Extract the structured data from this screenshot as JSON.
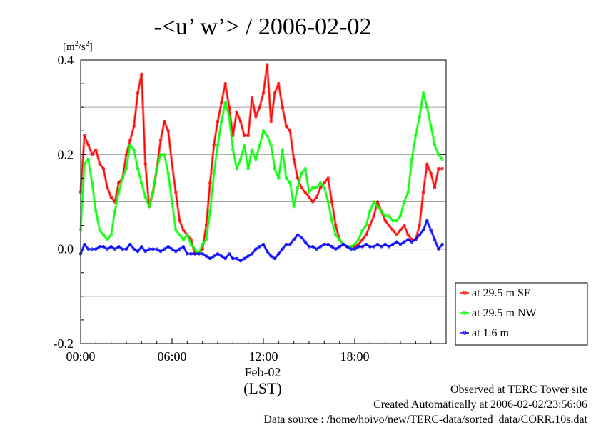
{
  "title": "-<u’ w’> / 2006-02-02",
  "footer": {
    "line1": "Observed at TERC Tower site",
    "line2": "Created Automatically at 2006-02-02/23:56:06",
    "line3": "Data source : /home/hoivo/new/TERC-data/sorted_data/CORR.10s.dat"
  },
  "chart_data": {
    "type": "line",
    "title": "-<u’ w’> / 2006-02-02",
    "ylabel": "[m²/s²]",
    "ylabel_parts": {
      "base": "[m",
      "sup1": "2",
      "mid": "/s",
      "sup2": "2",
      "end": "]"
    },
    "xlabel": "(LST)",
    "date_label": "Feb-02",
    "ylim": [
      -0.2,
      0.4
    ],
    "xlim_hours": [
      0,
      24
    ],
    "yticks": [
      -0.2,
      0.0,
      0.2,
      0.4
    ],
    "ytick_labels": [
      "-0.2",
      "0.0",
      "0.2",
      "0.4"
    ],
    "xticks_hours": [
      0,
      6,
      12,
      18
    ],
    "xtick_labels": [
      "00:00",
      "06:00",
      "12:00",
      "18:00"
    ],
    "gridlines_y": [
      -0.1,
      0.0,
      0.1,
      0.2,
      0.3
    ],
    "grid": true,
    "legend_position": "right",
    "series": [
      {
        "name": "at 29.5 m SE",
        "color": "#ff0000",
        "x": [
          0.0,
          0.25,
          0.5,
          0.75,
          1.0,
          1.25,
          1.5,
          1.75,
          2.0,
          2.25,
          2.5,
          2.75,
          3.0,
          3.25,
          3.5,
          3.75,
          4.0,
          4.25,
          4.5,
          4.75,
          5.0,
          5.25,
          5.5,
          5.75,
          6.0,
          6.25,
          6.5,
          6.75,
          7.0,
          7.25,
          7.5,
          7.75,
          8.0,
          8.25,
          8.5,
          8.75,
          9.0,
          9.25,
          9.5,
          9.75,
          10.0,
          10.25,
          10.5,
          10.75,
          11.0,
          11.25,
          11.5,
          11.75,
          12.0,
          12.25,
          12.5,
          12.75,
          13.0,
          13.25,
          13.5,
          13.75,
          14.0,
          14.25,
          14.5,
          14.75,
          15.0,
          15.25,
          15.5,
          15.75,
          16.0,
          16.25,
          16.5,
          16.75,
          17.0,
          17.25,
          17.5,
          17.75,
          18.0,
          18.25,
          18.5,
          18.75,
          19.0,
          19.25,
          19.5,
          19.75,
          20.0,
          20.25,
          20.5,
          20.75,
          21.0,
          21.25,
          21.5,
          21.75,
          22.0,
          22.25,
          22.5,
          22.75,
          23.0,
          23.25,
          23.5,
          23.75
        ],
        "values": [
          0.12,
          0.24,
          0.22,
          0.2,
          0.21,
          0.18,
          0.17,
          0.13,
          0.11,
          0.1,
          0.14,
          0.15,
          0.2,
          0.23,
          0.26,
          0.33,
          0.37,
          0.18,
          0.09,
          0.12,
          0.17,
          0.23,
          0.27,
          0.25,
          0.18,
          0.12,
          0.06,
          0.04,
          0.03,
          0.02,
          -0.01,
          -0.01,
          0.0,
          0.05,
          0.14,
          0.22,
          0.27,
          0.31,
          0.35,
          0.3,
          0.24,
          0.29,
          0.27,
          0.24,
          0.24,
          0.32,
          0.28,
          0.3,
          0.33,
          0.39,
          0.27,
          0.33,
          0.35,
          0.3,
          0.26,
          0.25,
          0.19,
          0.15,
          0.13,
          0.12,
          0.11,
          0.1,
          0.11,
          0.13,
          0.14,
          0.15,
          0.1,
          0.05,
          0.02,
          0.01,
          0.005,
          0.005,
          0.005,
          0.01,
          0.02,
          0.03,
          0.05,
          0.07,
          0.1,
          0.08,
          0.06,
          0.05,
          0.04,
          0.03,
          0.04,
          0.05,
          0.03,
          0.02,
          0.02,
          0.05,
          0.12,
          0.18,
          0.16,
          0.13,
          0.17,
          0.17
        ]
      },
      {
        "name": "at 29.5 m NW",
        "color": "#00ff00",
        "x": [
          0.0,
          0.25,
          0.5,
          0.75,
          1.0,
          1.25,
          1.5,
          1.75,
          2.0,
          2.25,
          2.5,
          2.75,
          3.0,
          3.25,
          3.5,
          3.75,
          4.0,
          4.25,
          4.5,
          4.75,
          5.0,
          5.25,
          5.5,
          5.75,
          6.0,
          6.25,
          6.5,
          6.75,
          7.0,
          7.25,
          7.5,
          7.75,
          8.0,
          8.25,
          8.5,
          8.75,
          9.0,
          9.25,
          9.5,
          9.75,
          10.0,
          10.25,
          10.5,
          10.75,
          11.0,
          11.25,
          11.5,
          11.75,
          12.0,
          12.25,
          12.5,
          12.75,
          13.0,
          13.25,
          13.5,
          13.75,
          14.0,
          14.25,
          14.5,
          14.75,
          15.0,
          15.25,
          15.5,
          15.75,
          16.0,
          16.25,
          16.5,
          16.75,
          17.0,
          17.25,
          17.5,
          17.75,
          18.0,
          18.25,
          18.5,
          18.75,
          19.0,
          19.25,
          19.5,
          19.75,
          20.0,
          20.25,
          20.5,
          20.75,
          21.0,
          21.25,
          21.5,
          21.75,
          22.0,
          22.25,
          22.5,
          22.75,
          23.0,
          23.25,
          23.5,
          23.75
        ],
        "values": [
          0.04,
          0.18,
          0.19,
          0.14,
          0.08,
          0.04,
          0.03,
          0.02,
          0.03,
          0.08,
          0.12,
          0.15,
          0.17,
          0.22,
          0.21,
          0.17,
          0.14,
          0.11,
          0.09,
          0.12,
          0.17,
          0.2,
          0.2,
          0.16,
          0.1,
          0.04,
          0.03,
          0.02,
          0.03,
          0.01,
          0.0,
          -0.01,
          0.01,
          0.02,
          0.08,
          0.16,
          0.22,
          0.27,
          0.31,
          0.28,
          0.21,
          0.17,
          0.19,
          0.22,
          0.17,
          0.21,
          0.19,
          0.22,
          0.25,
          0.24,
          0.22,
          0.17,
          0.15,
          0.21,
          0.15,
          0.14,
          0.09,
          0.13,
          0.16,
          0.17,
          0.12,
          0.13,
          0.13,
          0.14,
          0.13,
          0.1,
          0.06,
          0.03,
          0.02,
          0.01,
          0.005,
          0.005,
          0.01,
          0.02,
          0.04,
          0.05,
          0.08,
          0.1,
          0.09,
          0.08,
          0.07,
          0.07,
          0.06,
          0.06,
          0.07,
          0.1,
          0.12,
          0.19,
          0.24,
          0.28,
          0.33,
          0.3,
          0.26,
          0.22,
          0.2,
          0.19
        ]
      },
      {
        "name": "at 1.6 m",
        "color": "#0000ff",
        "x": [
          0.0,
          0.25,
          0.5,
          0.75,
          1.0,
          1.25,
          1.5,
          1.75,
          2.0,
          2.25,
          2.5,
          2.75,
          3.0,
          3.25,
          3.5,
          3.75,
          4.0,
          4.25,
          4.5,
          4.75,
          5.0,
          5.25,
          5.5,
          5.75,
          6.0,
          6.25,
          6.5,
          6.75,
          7.0,
          7.25,
          7.5,
          7.75,
          8.0,
          8.25,
          8.5,
          8.75,
          9.0,
          9.25,
          9.5,
          9.75,
          10.0,
          10.25,
          10.5,
          10.75,
          11.0,
          11.25,
          11.5,
          11.75,
          12.0,
          12.25,
          12.5,
          12.75,
          13.0,
          13.25,
          13.5,
          13.75,
          14.0,
          14.25,
          14.5,
          14.75,
          15.0,
          15.25,
          15.5,
          15.75,
          16.0,
          16.25,
          16.5,
          16.75,
          17.0,
          17.25,
          17.5,
          17.75,
          18.0,
          18.25,
          18.5,
          18.75,
          19.0,
          19.25,
          19.5,
          19.75,
          20.0,
          20.25,
          20.5,
          20.75,
          21.0,
          21.25,
          21.5,
          21.75,
          22.0,
          22.25,
          22.5,
          22.75,
          23.0,
          23.25,
          23.5,
          23.75
        ],
        "values": [
          -0.01,
          0.01,
          0.0,
          0.0,
          0.0,
          0.005,
          0.005,
          0.0,
          0.005,
          0.0,
          0.005,
          0.0,
          0.0,
          0.01,
          0.0,
          -0.005,
          0.005,
          -0.005,
          0.0,
          0.0,
          0.0,
          -0.005,
          0.0,
          0.005,
          0.0,
          -0.005,
          0.0,
          0.005,
          -0.01,
          -0.01,
          -0.01,
          -0.01,
          -0.01,
          -0.015,
          -0.02,
          -0.015,
          -0.01,
          -0.015,
          -0.02,
          -0.01,
          -0.02,
          -0.02,
          -0.025,
          -0.02,
          -0.015,
          -0.01,
          0.0,
          0.005,
          0.01,
          -0.005,
          -0.015,
          -0.02,
          -0.01,
          0.0,
          0.01,
          0.01,
          0.02,
          0.03,
          0.025,
          0.015,
          0.005,
          0.005,
          0.0,
          0.005,
          0.01,
          0.01,
          0.005,
          0.0,
          0.005,
          0.01,
          0.005,
          0.0,
          0.0,
          0.005,
          0.005,
          0.01,
          0.005,
          0.005,
          0.01,
          0.005,
          0.01,
          0.005,
          0.01,
          0.015,
          0.01,
          0.015,
          0.02,
          0.015,
          0.02,
          0.03,
          0.04,
          0.06,
          0.04,
          0.02,
          0.0,
          0.01
        ]
      }
    ]
  }
}
